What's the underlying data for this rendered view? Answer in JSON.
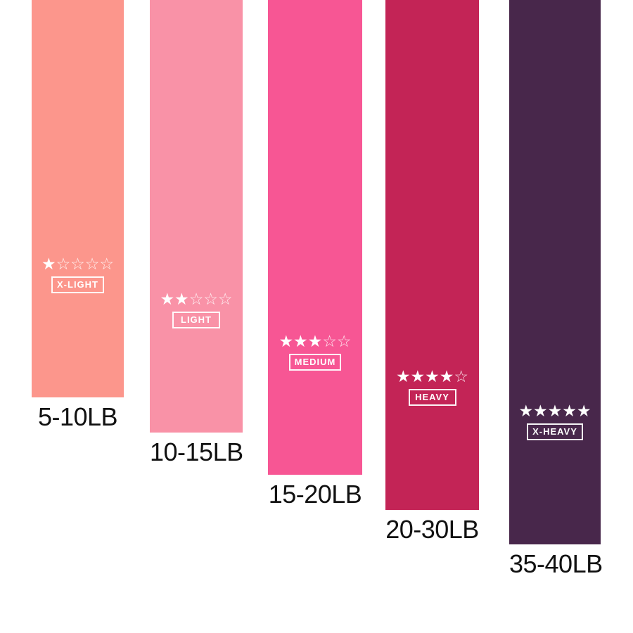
{
  "background_color": "#ffffff",
  "star_color": "#ffffff",
  "weight_text_color": "#111111",
  "bands": [
    {
      "name": "x-light",
      "color": "#FC968C",
      "stars_filled": 1,
      "stars_total": 5,
      "stars_filled_str": "★",
      "stars_empty_str": "☆☆☆☆",
      "label": "X-LIGHT",
      "weight": "5-10LB"
    },
    {
      "name": "light",
      "color": "#F992A7",
      "stars_filled": 2,
      "stars_total": 5,
      "stars_filled_str": "★★",
      "stars_empty_str": "☆☆☆",
      "label": "LIGHT",
      "weight": "10-15LB"
    },
    {
      "name": "medium",
      "color": "#F75694",
      "stars_filled": 3,
      "stars_total": 5,
      "stars_filled_str": "★★★",
      "stars_empty_str": "☆☆",
      "label": "MEDIUM",
      "weight": "15-20LB"
    },
    {
      "name": "heavy",
      "color": "#C32456",
      "stars_filled": 4,
      "stars_total": 5,
      "stars_filled_str": "★★★★",
      "stars_empty_str": "☆",
      "label": "HEAVY",
      "weight": "20-30LB"
    },
    {
      "name": "x-heavy",
      "color": "#48274B",
      "stars_filled": 5,
      "stars_total": 5,
      "stars_filled_str": "★★★★★",
      "stars_empty_str": "",
      "label": "X-HEAVY",
      "weight": "35-40LB"
    }
  ]
}
